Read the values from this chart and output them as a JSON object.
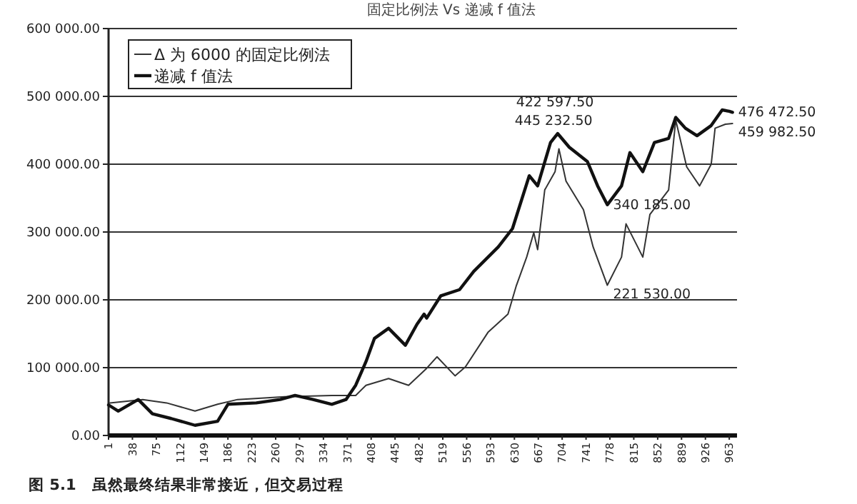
{
  "chart_data": {
    "type": "line",
    "title": "固定比例法 Vs 递减 f 值法",
    "xlim": [
      1,
      975
    ],
    "xticks": [
      1,
      38,
      75,
      112,
      149,
      186,
      223,
      260,
      297,
      334,
      371,
      408,
      445,
      482,
      519,
      556,
      593,
      630,
      667,
      704,
      741,
      778,
      815,
      852,
      889,
      926,
      963
    ],
    "ylim": [
      0,
      600000
    ],
    "yticks": [
      {
        "value": 0,
        "label": "0.00"
      },
      {
        "value": 100000,
        "label": "100 000.00"
      },
      {
        "value": 200000,
        "label": "200 000.00"
      },
      {
        "value": 300000,
        "label": "300 000.00"
      },
      {
        "value": 400000,
        "label": "400 000.00"
      },
      {
        "value": 500000,
        "label": "500 000.00"
      },
      {
        "value": 600000,
        "label": "600 000.00"
      }
    ],
    "grid": "y",
    "legend": "top left",
    "series": [
      {
        "name": "Δ 为 6000 的固定比例法",
        "color": "#333333",
        "x": [
          3,
          54,
          91,
          135,
          170,
          201,
          274,
          347,
          384,
          400,
          435,
          466,
          494,
          510,
          538,
          554,
          589,
          620,
          633,
          649,
          660,
          666,
          677,
          693,
          699,
          710,
          737,
          752,
          774,
          796,
          803,
          829,
          840,
          869,
          880,
          897,
          917,
          935,
          941,
          957,
          968
        ],
        "values": [
          48000,
          53000,
          48000,
          36000,
          46000,
          53000,
          57000,
          59000,
          59000,
          74000,
          84000,
          74000,
          99000,
          116000,
          88000,
          101000,
          152000,
          179000,
          221000,
          263000,
          299000,
          274000,
          362000,
          389000,
          422597.5,
          375000,
          333000,
          278000,
          221530,
          263000,
          312000,
          263000,
          326000,
          362000,
          465000,
          396000,
          368000,
          400000,
          453000,
          459000,
          459982.5
        ]
      },
      {
        "name": "递减 f 值法",
        "color": "#111111",
        "x": [
          1,
          16,
          47,
          69,
          98,
          135,
          170,
          186,
          230,
          267,
          290,
          318,
          347,
          369,
          384,
          400,
          413,
          435,
          461,
          479,
          490,
          494,
          516,
          545,
          567,
          605,
          627,
          653,
          666,
          686,
          697,
          715,
          743,
          759,
          774,
          796,
          809,
          829,
          847,
          869,
          880,
          895,
          913,
          935,
          952,
          963,
          968
        ],
        "values": [
          45000,
          36000,
          53000,
          32000,
          25000,
          15000,
          21000,
          46000,
          48000,
          53000,
          59000,
          53000,
          46000,
          53000,
          74000,
          109000,
          143000,
          158000,
          133000,
          164000,
          179000,
          173000,
          206000,
          215000,
          242000,
          278000,
          305000,
          383000,
          368000,
          432000,
          445232.5,
          425000,
          404000,
          368000,
          340185,
          368000,
          417000,
          389000,
          432000,
          438000,
          469000,
          453000,
          442000,
          457000,
          480000,
          478000,
          476472.5
        ]
      }
    ],
    "annotations": [
      {
        "text": "445 232.50",
        "x": 697,
        "y": 445232.5
      },
      {
        "text": "422 597.50",
        "x": 699,
        "y": 422597.5
      },
      {
        "text": "340 185.00",
        "x": 774,
        "y": 340185
      },
      {
        "text": "221 530.00",
        "x": 774,
        "y": 221530
      },
      {
        "text": "476 472.50",
        "x": 968,
        "y": 476472.5
      },
      {
        "text": "459 982.50",
        "x": 968,
        "y": 459982.5
      },
      "图 5.1　虽然最终结果非常接近，但交易过程"
    ]
  }
}
